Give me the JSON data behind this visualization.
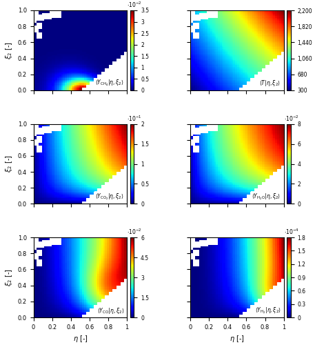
{
  "nrows": 3,
  "ncols": 2,
  "figsize": [
    4.86,
    5.0
  ],
  "dpi": 100,
  "plots": [
    {
      "row": 0,
      "col": 0,
      "label": "$\\langle Y_{\\mathrm{CH_4}}|\\eta, \\xi_2\\rangle$",
      "vmin": 0,
      "vmax": 0.035,
      "cbar_ticks": [
        0,
        0.005,
        0.01,
        0.015,
        0.02,
        0.025,
        0.03,
        0.035
      ],
      "cbar_ticklabels": [
        "0",
        "0.5",
        "1",
        "1.5",
        "2",
        "2.5",
        "3",
        "3.5"
      ],
      "exp_label": "$\\cdot10^{-2}$",
      "pattern": "CH4"
    },
    {
      "row": 0,
      "col": 1,
      "label": "$\\langle T|\\eta, \\xi_2\\rangle$",
      "vmin": 300,
      "vmax": 2200,
      "cbar_ticks": [
        300,
        680,
        1060,
        1440,
        1820,
        2200
      ],
      "cbar_ticklabels": [
        "300",
        "680",
        "1,060",
        "1,440",
        "1,820",
        "2,200"
      ],
      "exp_label": "",
      "pattern": "T"
    },
    {
      "row": 1,
      "col": 0,
      "label": "$\\langle Y_{\\mathrm{CO_2}}|\\eta, \\xi_2\\rangle$",
      "vmin": 0,
      "vmax": 0.2,
      "cbar_ticks": [
        0,
        0.05,
        0.1,
        0.15,
        0.2
      ],
      "cbar_ticklabels": [
        "0",
        "0.5",
        "1",
        "1.5",
        "2"
      ],
      "exp_label": "$\\cdot10^{-1}$",
      "pattern": "CO2"
    },
    {
      "row": 1,
      "col": 1,
      "label": "$\\langle Y_{\\mathrm{H_2O}}|\\eta, \\xi_2\\rangle$",
      "vmin": 0,
      "vmax": 0.08,
      "cbar_ticks": [
        0,
        0.02,
        0.04,
        0.06,
        0.08
      ],
      "cbar_ticklabels": [
        "0",
        "2",
        "4",
        "6",
        "8"
      ],
      "exp_label": "$\\cdot10^{-2}$",
      "pattern": "H2O"
    },
    {
      "row": 2,
      "col": 0,
      "label": "$\\langle Y_{\\mathrm{CO}}|\\eta, \\xi_2\\rangle$",
      "vmin": 0,
      "vmax": 0.06,
      "cbar_ticks": [
        0,
        0.015,
        0.03,
        0.045,
        0.06
      ],
      "cbar_ticklabels": [
        "0",
        "1.5",
        "3",
        "4.5",
        "6"
      ],
      "exp_label": "$\\cdot10^{-2}$",
      "pattern": "CO"
    },
    {
      "row": 2,
      "col": 1,
      "label": "$\\langle Y_{\\mathrm{H_2}}|\\eta, \\xi_2\\rangle$",
      "vmin": 0,
      "vmax": 0.00018,
      "cbar_ticks": [
        0,
        3e-05,
        6e-05,
        9e-05,
        0.00012,
        0.00015,
        0.00018
      ],
      "cbar_ticklabels": [
        "0",
        "0.3",
        "0.6",
        "0.9",
        "1.2",
        "1.5",
        "1.8"
      ],
      "exp_label": "$\\cdot10^{-4}$",
      "pattern": "H2"
    }
  ],
  "xlabel": "$\\eta$ [-]",
  "ylabel": "$\\xi_2$ [-]",
  "xticks": [
    0,
    0.2,
    0.4,
    0.6,
    0.8,
    1
  ],
  "yticks": [
    0,
    0.2,
    0.4,
    0.6,
    0.8,
    1
  ]
}
